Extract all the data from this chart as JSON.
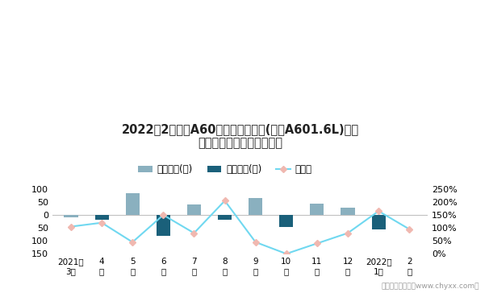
{
  "title_line1": "2022年2月风神A60旗下最畅销轿车(风神A601.6L)近一",
  "title_line2": "年库存情况及产销率统计图",
  "x_labels_line1": [
    "2021年",
    "4",
    "5",
    "6",
    "7",
    "8",
    "9",
    "10",
    "11",
    "12",
    "2022年",
    "2"
  ],
  "x_labels_line2": [
    "3月",
    "月",
    "月",
    "月",
    "月",
    "月",
    "月",
    "月",
    "月",
    "月",
    "1月",
    "月"
  ],
  "jiaya_values": [
    -10,
    0,
    85,
    0,
    40,
    0,
    65,
    0,
    45,
    28,
    0,
    0
  ],
  "qingcang_values": [
    0,
    -20,
    0,
    -80,
    0,
    -20,
    0,
    -45,
    0,
    0,
    -55,
    0
  ],
  "chansiaolv": [
    1.05,
    1.2,
    0.45,
    1.5,
    0.8,
    2.05,
    0.45,
    0.0,
    0.4,
    0.8,
    1.65,
    0.95
  ],
  "jiaya_color": "#8ab0bf",
  "qingcang_color": "#1a607a",
  "line_color": "#70d8f0",
  "marker_face_color": "#f0b8b0",
  "marker_edge_color": "#f0b8b0",
  "ylim_left": [
    -150,
    100
  ],
  "ylim_right": [
    0.0,
    2.5
  ],
  "legend_labels": [
    "积压库存(辆)",
    "清仓库存(辆)",
    "产销率"
  ],
  "source_text": "制图：智研咨询（www.chyxx.com）",
  "background_color": "#ffffff",
  "zero_line_color": "#c0c0c0"
}
